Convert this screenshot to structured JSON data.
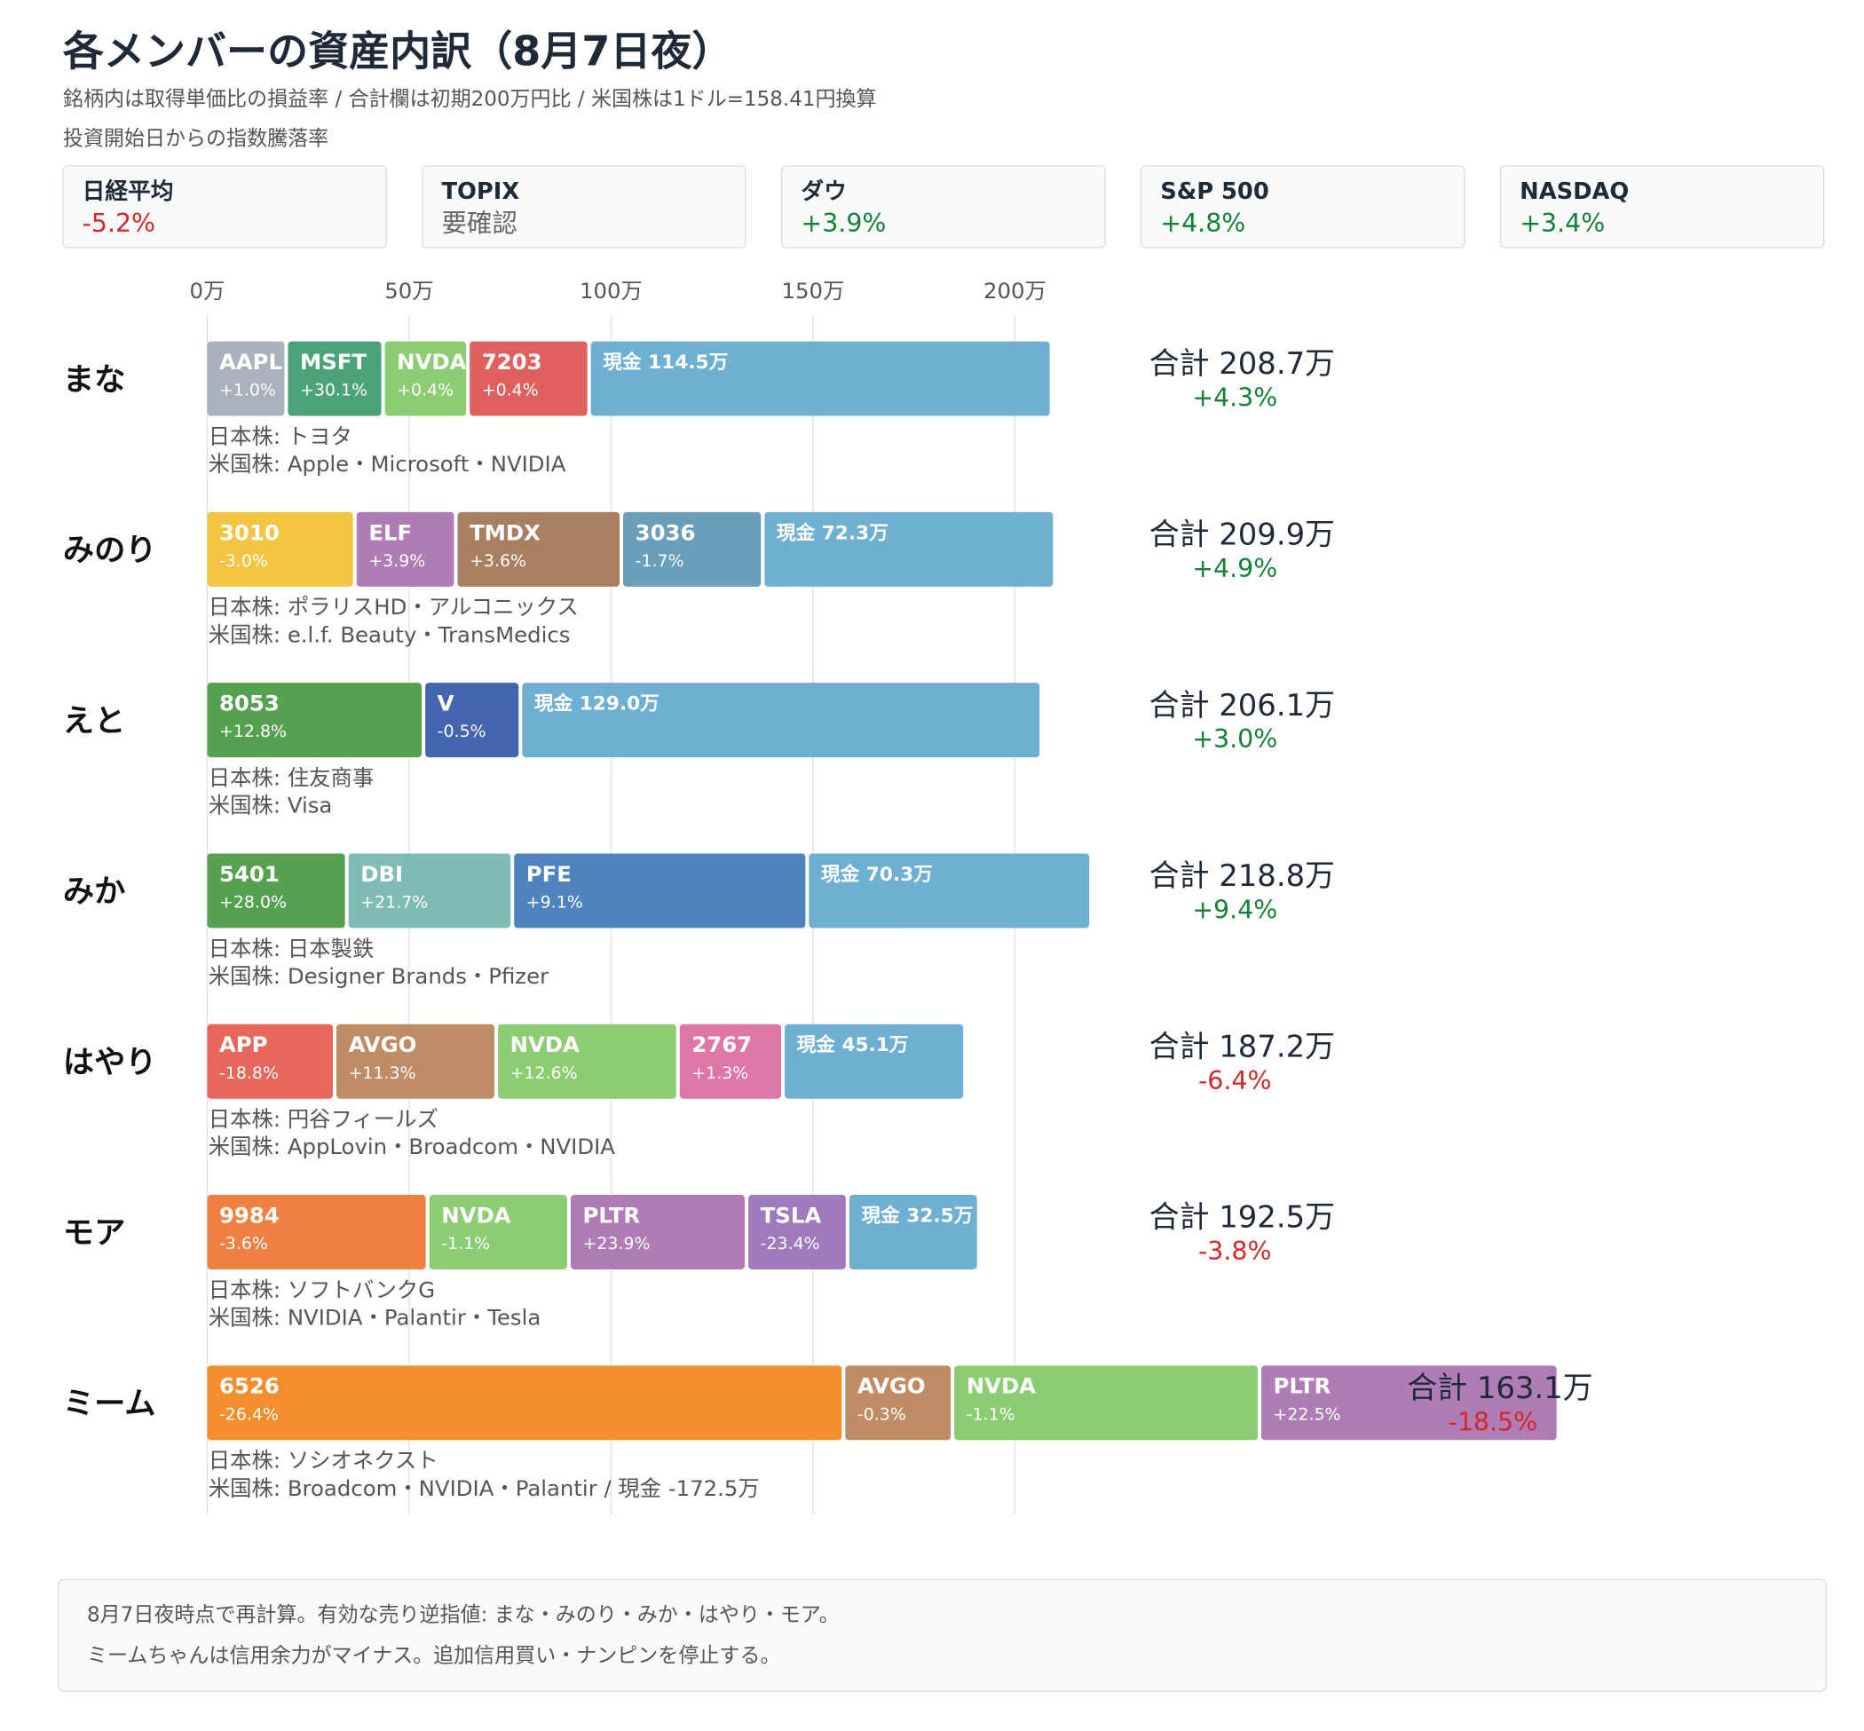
{
  "chart_data": {
    "type": "stacked-bar-horizontal",
    "title": "各メンバーの資産内訳（8月7日夜）",
    "subtitle": "銘柄内は取得単価比の損益率 / 合計欄は初期200万円比 / 米国株は1ドル=158.41円換算",
    "index_heading": "投資開始日からの指数騰落率",
    "indices": [
      {
        "name": "日経平均",
        "value": "-5.2%",
        "color": "#d62828"
      },
      {
        "name": "TOPIX",
        "value": "要確認",
        "color": "#666666"
      },
      {
        "name": "ダウ",
        "value": "+3.9%",
        "color": "#188038"
      },
      {
        "name": "S&P 500",
        "value": "+4.8%",
        "color": "#188038"
      },
      {
        "name": "NASDAQ",
        "value": "+3.4%",
        "color": "#188038"
      }
    ],
    "xlim": [
      0,
      200
    ],
    "xticks": [
      {
        "value": 0,
        "label": "0万"
      },
      {
        "value": 50,
        "label": "50万"
      },
      {
        "value": 100,
        "label": "100万"
      },
      {
        "value": 150,
        "label": "150万"
      },
      {
        "value": 200,
        "label": "200万"
      }
    ],
    "grid": true,
    "members": [
      {
        "name": "まな",
        "total": "合計 208.7万",
        "total_change": "+4.3%",
        "total_color": "#188038",
        "notes": [
          "日本株: トヨタ",
          "米国株: Apple・Microsoft・NVIDIA"
        ],
        "segments": [
          {
            "name": "AAPL",
            "change": "+1.0%",
            "value": 20,
            "color": "#a9b1bd"
          },
          {
            "name": "MSFT",
            "change": "+30.1%",
            "value": 24,
            "color": "#4ba37a"
          },
          {
            "name": "NVDA",
            "change": "+0.4%",
            "value": 21,
            "color": "#8ccd74"
          },
          {
            "name": "7203",
            "change": "+0.4%",
            "value": 30,
            "color": "#e0605f"
          },
          {
            "value": 114.5,
            "value_label": "現金 114.5万",
            "color": "#6fb0d2"
          }
        ]
      },
      {
        "name": "みのり",
        "total": "合計 209.9万",
        "total_change": "+4.9%",
        "total_color": "#188038",
        "notes": [
          "日本株: ポラリスHD・アルコニックス",
          "米国株: e.l.f. Beauty・TransMedics"
        ],
        "segments": [
          {
            "name": "3010",
            "change": "-3.0%",
            "value": 37,
            "color": "#f4c542"
          },
          {
            "name": "ELF",
            "change": "+3.9%",
            "value": 25,
            "color": "#b07cb5"
          },
          {
            "name": "TMDX",
            "change": "+3.6%",
            "value": 41,
            "color": "#a97f62"
          },
          {
            "name": "3036",
            "change": "-1.7%",
            "value": 35,
            "color": "#699fba"
          },
          {
            "value": 72.3,
            "value_label": "現金 72.3万",
            "color": "#6fb0d2"
          }
        ]
      },
      {
        "name": "えと",
        "total": "合計 206.1万",
        "total_change": "+3.0%",
        "total_color": "#188038",
        "notes": [
          "日本株: 住友商事",
          "米国株: Visa"
        ],
        "segments": [
          {
            "name": "8053",
            "change": "+12.8%",
            "value": 54,
            "color": "#55a150"
          },
          {
            "name": "V",
            "change": "-0.5%",
            "value": 24,
            "color": "#4465b0"
          },
          {
            "value": 129.0,
            "value_label": "現金 129.0万",
            "color": "#6fb0d2"
          }
        ]
      },
      {
        "name": "みか",
        "total": "合計 218.8万",
        "total_change": "+9.4%",
        "total_color": "#188038",
        "notes": [
          "日本株: 日本製鉄",
          "米国株: Designer Brands・Pfizer"
        ],
        "segments": [
          {
            "name": "5401",
            "change": "+28.0%",
            "value": 35,
            "color": "#55a150"
          },
          {
            "name": "DBI",
            "change": "+21.7%",
            "value": 41,
            "color": "#7fbcb6"
          },
          {
            "name": "PFE",
            "change": "+9.1%",
            "value": 73,
            "color": "#4f83bf"
          },
          {
            "value": 70.3,
            "value_label": "現金 70.3万",
            "color": "#6fb0d2"
          }
        ]
      },
      {
        "name": "はやり",
        "total": "合計 187.2万",
        "total_change": "-6.4%",
        "total_color": "#d62828",
        "notes": [
          "日本株: 円谷フィールズ",
          "米国株: AppLovin・Broadcom・NVIDIA"
        ],
        "segments": [
          {
            "name": "APP",
            "change": "-18.8%",
            "value": 32,
            "color": "#e8675a"
          },
          {
            "name": "AVGO",
            "change": "+11.3%",
            "value": 40,
            "color": "#c08c66"
          },
          {
            "name": "NVDA",
            "change": "+12.6%",
            "value": 45,
            "color": "#8ccd74"
          },
          {
            "name": "2767",
            "change": "+1.3%",
            "value": 26,
            "color": "#de76a8"
          },
          {
            "value": 45.1,
            "value_label": "現金 45.1万",
            "color": "#6fb0d2"
          }
        ]
      },
      {
        "name": "モア",
        "total": "合計 192.5万",
        "total_change": "-3.8%",
        "total_color": "#d62828",
        "notes": [
          "日本株: ソフトバンクG",
          "米国株: NVIDIA・Palantir・Tesla"
        ],
        "segments": [
          {
            "name": "9984",
            "change": "-3.6%",
            "value": 55,
            "color": "#f07f42"
          },
          {
            "name": "NVDA",
            "change": "-1.1%",
            "value": 35,
            "color": "#8ccd74"
          },
          {
            "name": "PLTR",
            "change": "+23.9%",
            "value": 44,
            "color": "#b07cb5"
          },
          {
            "name": "TSLA",
            "change": "-23.4%",
            "value": 25,
            "color": "#9f7bbd"
          },
          {
            "value": 32.5,
            "value_label": "現金 32.5万",
            "color": "#6fb0d2"
          }
        ]
      },
      {
        "name": "ミーム",
        "total": "合計 163.1万",
        "total_change": "-18.5%",
        "total_color": "#d62828",
        "notes": [
          "日本株: ソシオネクスト",
          "米国株: Broadcom・NVIDIA・Palantir / 現金 -172.5万"
        ],
        "segments": [
          {
            "name": "6526",
            "change": "-26.4%",
            "value": 158,
            "color": "#f28e2b"
          },
          {
            "name": "AVGO",
            "change": "-0.3%",
            "value": 27,
            "color": "#c08c66"
          },
          {
            "name": "NVDA",
            "change": "-1.1%",
            "value": 76,
            "color": "#8ccd74"
          },
          {
            "name": "PLTR",
            "change": "+22.5%",
            "value": 74,
            "color": "#b07cb5"
          }
        ]
      }
    ],
    "footer": [
      "8月7日夜時点で再計算。有効な売り逆指値: まな・みのり・みか・はやり・モア。",
      "ミームちゃんは信用余力がマイナス。追加信用買い・ナンピンを停止する。"
    ]
  }
}
